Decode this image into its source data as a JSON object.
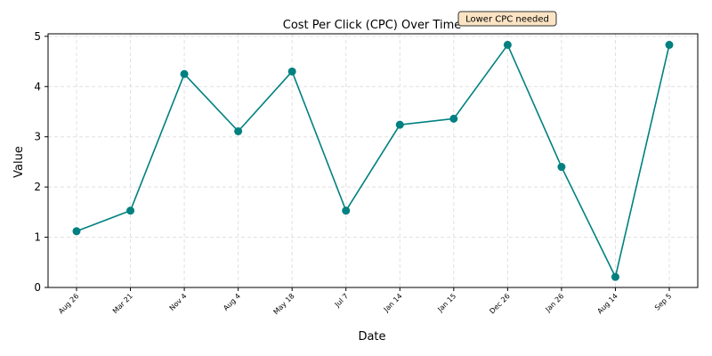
{
  "chart_data": {
    "type": "line",
    "title": "Cost Per Click (CPC) Over Time",
    "xlabel": "Date",
    "ylabel": "Value",
    "categories": [
      "Aug 26",
      "Mar 21",
      "Nov 4",
      "Aug 4",
      "May 18",
      "Jul 7",
      "Jan 14",
      "Jan 15",
      "Dec 26",
      "Jan 26",
      "Aug 14",
      "Sep 5"
    ],
    "series": [
      {
        "values": [
          1.12,
          1.53,
          4.25,
          3.11,
          4.3,
          1.53,
          3.24,
          3.36,
          4.83,
          2.4,
          0.21,
          4.83
        ]
      }
    ],
    "ylim": [
      0,
      5.05
    ],
    "yticks": [
      0,
      1,
      2,
      3,
      4,
      5
    ],
    "grid": true,
    "annotation": {
      "text": "Lower CPC needed"
    },
    "colors": {
      "line": "#008080",
      "grid": "#e0e0e0",
      "annotation_fill": "#fbe3c3",
      "annotation_border": "#333333"
    }
  }
}
